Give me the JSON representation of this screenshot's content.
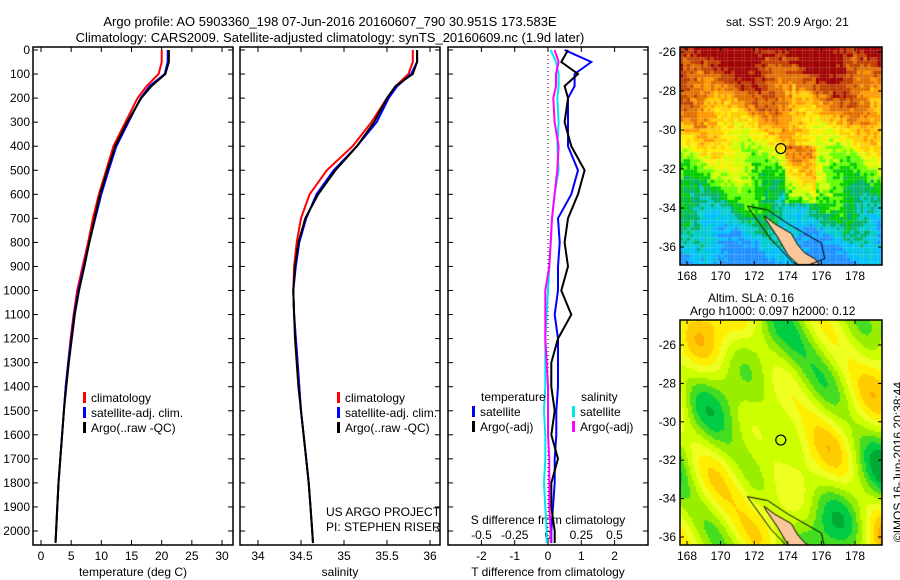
{
  "title": {
    "line1": "Argo profile: AO 5903360_198 07-Jun-2016 20160607_790 30.951S 173.583E",
    "line2": "Climatology: CARS2009. Satellite-adjusted climatology: synTS_20160609.nc (1.9d later)"
  },
  "copyright": "©IMOS 16-Jun-2016 20:38:44",
  "colors": {
    "climatology": "#ff0000",
    "satellite": "#0000ff",
    "argo": "#000000",
    "sal_satellite": "#00e5ee",
    "sal_argo": "#ff00ff"
  },
  "chart_data": [
    {
      "type": "line",
      "name": "temperature-profile",
      "xlabel": "temperature (deg C)",
      "xlim": [
        -1.4,
        31.5
      ],
      "xticks": [
        0,
        5,
        10,
        15,
        20,
        25,
        30
      ],
      "ylim": [
        2060,
        0
      ],
      "yticks": [
        0,
        100,
        200,
        300,
        400,
        500,
        600,
        700,
        800,
        900,
        1000,
        1100,
        1200,
        1300,
        1400,
        1500,
        1600,
        1700,
        1800,
        1900,
        2000
      ],
      "depth": [
        0,
        50,
        100,
        150,
        200,
        300,
        400,
        500,
        600,
        700,
        800,
        900,
        1000,
        1100,
        1200,
        1300,
        1400,
        1500,
        1600,
        1700,
        1800,
        1900,
        2000,
        2050
      ],
      "legend": [
        "climatology",
        "satellite-adj. clim.",
        "Argo(..raw -QC)"
      ],
      "series": [
        {
          "name": "climatology",
          "values": [
            20,
            20,
            19.5,
            17.5,
            16,
            14,
            12,
            10.8,
            9.6,
            8.6,
            7.8,
            6.9,
            6,
            5.4,
            4.9,
            4.5,
            4.1,
            3.8,
            3.5,
            3.2,
            2.9,
            2.7,
            2.5,
            2.4
          ]
        },
        {
          "name": "satellite-adj. clim.",
          "values": [
            21,
            21,
            20.5,
            18,
            16.5,
            14.5,
            12.5,
            11.2,
            10,
            9,
            8,
            7.1,
            6.2,
            5.5,
            5,
            4.5,
            4.1,
            3.8,
            3.5,
            3.2,
            2.9,
            2.7,
            2.5,
            2.4
          ]
        },
        {
          "name": "Argo(..raw -QC)",
          "values": [
            21.2,
            21.2,
            20.6,
            18.3,
            16.6,
            14.3,
            12.3,
            11,
            9.8,
            8.9,
            8,
            7.2,
            6.3,
            5.6,
            5.1,
            4.6,
            4.2,
            3.8,
            3.5,
            3.2,
            2.9,
            2.7,
            2.5,
            2.4
          ]
        }
      ]
    },
    {
      "type": "line",
      "name": "salinity-profile",
      "xlabel": "salinity",
      "xlim": [
        33.8,
        36.15
      ],
      "xticks": [
        34,
        34.5,
        35,
        35.5,
        36
      ],
      "ylim": [
        2060,
        0
      ],
      "depth": [
        0,
        50,
        100,
        150,
        200,
        300,
        400,
        500,
        600,
        700,
        800,
        900,
        1000,
        1100,
        1200,
        1300,
        1400,
        1500,
        1600,
        1700,
        1800,
        1900,
        2000,
        2050
      ],
      "legend": [
        "climatology",
        "satellite-adj. clim.",
        "Argo(..raw -QC)"
      ],
      "annotation": [
        "US ARGO PROJECT",
        "PI: STEPHEN RISER"
      ],
      "series": [
        {
          "name": "climatology",
          "values": [
            35.8,
            35.8,
            35.75,
            35.6,
            35.5,
            35.32,
            35.1,
            34.8,
            34.6,
            34.5,
            34.45,
            34.42,
            34.41,
            34.42,
            34.44,
            34.46,
            34.48,
            34.5,
            34.53,
            34.56,
            34.59,
            34.61,
            34.63,
            34.64
          ]
        },
        {
          "name": "satellite-adj. clim.",
          "values": [
            35.85,
            35.85,
            35.78,
            35.62,
            35.52,
            35.38,
            35.15,
            34.88,
            34.68,
            34.56,
            34.48,
            34.44,
            34.41,
            34.42,
            34.44,
            34.46,
            34.48,
            34.5,
            34.53,
            34.56,
            34.59,
            34.61,
            34.63,
            34.64
          ]
        },
        {
          "name": "Argo(..raw -QC)",
          "values": [
            35.85,
            35.85,
            35.8,
            35.6,
            35.5,
            35.35,
            35.15,
            34.9,
            34.7,
            34.55,
            34.47,
            34.43,
            34.41,
            34.42,
            34.43,
            34.45,
            34.47,
            34.5,
            34.53,
            34.56,
            34.59,
            34.61,
            34.63,
            34.64
          ]
        }
      ]
    },
    {
      "type": "line",
      "name": "difference-profile",
      "xlabel": "T difference from climatology",
      "xlim": [
        -3,
        3
      ],
      "xticks": [
        -2,
        -1,
        0,
        1,
        2
      ],
      "x2label": "S difference from climatology",
      "x2ticks": [
        -0.5,
        -0.25,
        0,
        0.25,
        0.5
      ],
      "x2ticklabels": [
        "-0.5",
        "-0.25",
        "0",
        "0.25",
        "0.5"
      ],
      "ylim": [
        2060,
        0
      ],
      "depth": [
        0,
        50,
        100,
        150,
        200,
        300,
        400,
        500,
        600,
        700,
        800,
        900,
        1000,
        1100,
        1200,
        1300,
        1400,
        1500,
        1600,
        1700,
        1800,
        1900,
        2000,
        2050
      ],
      "legend": {
        "temperature": {
          "header": "temperature",
          "items": [
            "satellite",
            "Argo(-adj)"
          ]
        },
        "salinity": {
          "header": "salinity",
          "items": [
            "satellite",
            "Argo(-adj)"
          ]
        }
      },
      "series": [
        {
          "name": "T satellite",
          "units": "T",
          "values": [
            0.5,
            1.3,
            0.8,
            0.8,
            0.6,
            0.6,
            0.6,
            0.9,
            0.7,
            0.3,
            0.35,
            0.3,
            0.3,
            0.2,
            0.3,
            0.3,
            0.3,
            0.25,
            0.25,
            0.2,
            0.2,
            0.15,
            0.1,
            0.1
          ]
        },
        {
          "name": "T Argo(-adj)",
          "units": "T",
          "values": [
            0.6,
            0.4,
            0.9,
            0.5,
            0.6,
            0.5,
            0.7,
            1.1,
            0.9,
            0.6,
            0.5,
            0.6,
            0.4,
            0.7,
            0.3,
            0.1,
            0.1,
            0.2,
            0.1,
            0.3,
            0.1,
            0.1,
            0.2,
            0.2
          ]
        },
        {
          "name": "S satellite",
          "units": "S",
          "values": [
            0.02,
            0.06,
            0.08,
            0.08,
            0.07,
            0.08,
            0.07,
            0.08,
            0.05,
            0.03,
            0.02,
            0.01,
            0,
            -0.01,
            -0.02,
            -0.02,
            -0.02,
            -0.03,
            -0.02,
            -0.02,
            -0.03,
            -0.02,
            -0.01,
            -0.01
          ]
        },
        {
          "name": "S Argo(-adj)",
          "units": "S",
          "values": [
            0.05,
            0.08,
            0.06,
            0.06,
            0.04,
            0.05,
            0.08,
            0.07,
            0.05,
            0.03,
            0.02,
            0.01,
            -0.02,
            -0.02,
            -0.02,
            -0.01,
            0,
            0,
            0,
            0.01,
            0.01,
            0.01,
            0.02,
            0.02
          ]
        }
      ]
    },
    {
      "type": "heatmap",
      "name": "sst-map",
      "title": "sat. SST: 20.9 Argo: 21",
      "xlim": [
        167.8,
        179.8
      ],
      "xticks": [
        168,
        170,
        172,
        174,
        176,
        178
      ],
      "ylim": [
        -36.8,
        -25.5
      ],
      "yticks": [
        -26,
        -28,
        -30,
        -32,
        -34,
        -36
      ],
      "marker": {
        "lon": 173.583,
        "lat": -30.951
      }
    },
    {
      "type": "heatmap",
      "name": "sla-map",
      "title": [
        "Altim. SLA: 0.16",
        "Argo h1000: 0.097 h2000: 0.12"
      ],
      "xlim": [
        167.8,
        179.8
      ],
      "xticks": [
        168,
        170,
        172,
        174,
        176,
        178
      ],
      "ylim": [
        -36.8,
        -25.0
      ],
      "yticks": [
        -26,
        -28,
        -30,
        -32,
        -34,
        -36
      ],
      "marker": {
        "lon": 173.583,
        "lat": -30.951
      }
    }
  ]
}
